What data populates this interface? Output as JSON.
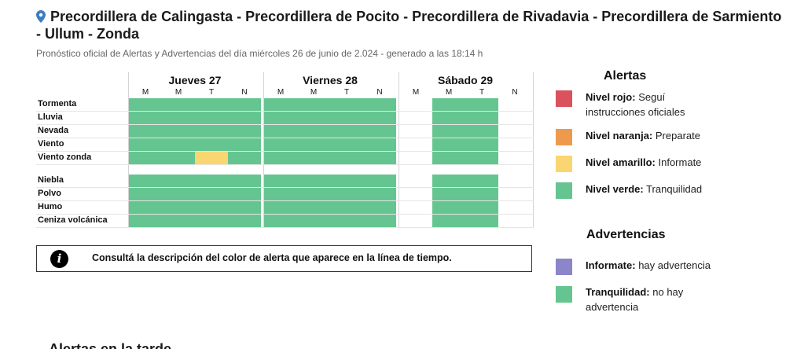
{
  "header": {
    "title": "Precordillera de Calingasta - Precordillera de Pocito - Precordillera de Rivadavia - Precordillera de Sarmiento - Ullum - Zonda",
    "subtitle": "Pronóstico oficial de Alertas y Advertencias del día miércoles 26 de junio de 2.024 - generado a las 18:14 h",
    "icon": "map-pin-icon"
  },
  "timeline": {
    "days": [
      {
        "label": "Jueves 27",
        "periods": [
          "M",
          "M",
          "T",
          "N"
        ]
      },
      {
        "label": "Viernes 28",
        "periods": [
          "M",
          "M",
          "T",
          "N"
        ]
      },
      {
        "label": "Sábado 29",
        "periods": [
          "M",
          "M",
          "T",
          "N"
        ]
      }
    ],
    "rows": [
      {
        "label": "Tormenta",
        "levels": [
          "verde",
          "verde",
          "verde",
          "verde",
          "verde",
          "verde",
          "verde",
          "verde",
          "",
          "verde",
          "verde",
          ""
        ]
      },
      {
        "label": "Lluvia",
        "levels": [
          "verde",
          "verde",
          "verde",
          "verde",
          "verde",
          "verde",
          "verde",
          "verde",
          "",
          "verde",
          "verde",
          ""
        ]
      },
      {
        "label": "Nevada",
        "levels": [
          "verde",
          "verde",
          "verde",
          "verde",
          "verde",
          "verde",
          "verde",
          "verde",
          "",
          "verde",
          "verde",
          ""
        ]
      },
      {
        "label": "Viento",
        "levels": [
          "verde",
          "verde",
          "verde",
          "verde",
          "verde",
          "verde",
          "verde",
          "verde",
          "",
          "verde",
          "verde",
          ""
        ]
      },
      {
        "label": "Viento zonda",
        "levels": [
          "verde",
          "verde",
          "amarillo",
          "verde",
          "verde",
          "verde",
          "verde",
          "verde",
          "",
          "verde",
          "verde",
          ""
        ]
      },
      {
        "label": "Niebla",
        "levels": [
          "verde",
          "verde",
          "verde",
          "verde",
          "verde",
          "verde",
          "verde",
          "verde",
          "",
          "verde",
          "verde",
          ""
        ]
      },
      {
        "label": "Polvo",
        "levels": [
          "verde",
          "verde",
          "verde",
          "verde",
          "verde",
          "verde",
          "verde",
          "verde",
          "",
          "verde",
          "verde",
          ""
        ]
      },
      {
        "label": "Humo",
        "levels": [
          "verde",
          "verde",
          "verde",
          "verde",
          "verde",
          "verde",
          "verde",
          "verde",
          "",
          "verde",
          "verde",
          ""
        ]
      },
      {
        "label": "Ceniza volcánica",
        "levels": [
          "verde",
          "verde",
          "verde",
          "verde",
          "verde",
          "verde",
          "verde",
          "verde",
          "",
          "verde",
          "verde",
          ""
        ]
      }
    ]
  },
  "info": {
    "icon": "info-icon",
    "icon_glyph": "i",
    "text": "Consultá la descripción del color de alerta que aparece en la línea de tiempo."
  },
  "legend": {
    "alerts_title": "Alertas",
    "alerts": [
      {
        "level": "Nivel rojo:",
        "desc": "Seguí instrucciones oficiales",
        "color": "#d9525e"
      },
      {
        "level": "Nivel naranja:",
        "desc": "Preparate",
        "color": "#ee9a4d"
      },
      {
        "level": "Nivel amarillo:",
        "desc": "Informate",
        "color": "#f9d672"
      },
      {
        "level": "Nivel verde:",
        "desc": "Tranquilidad",
        "color": "#65c591"
      }
    ],
    "warnings_title": "Advertencias",
    "warnings": [
      {
        "level": "Informate:",
        "desc": "hay advertencia",
        "color": "#8c85c8"
      },
      {
        "level": "Tranquilidad:",
        "desc": "no hay advertencia",
        "color": "#65c591"
      }
    ]
  },
  "next_section_title": "Alertas en la tarde"
}
